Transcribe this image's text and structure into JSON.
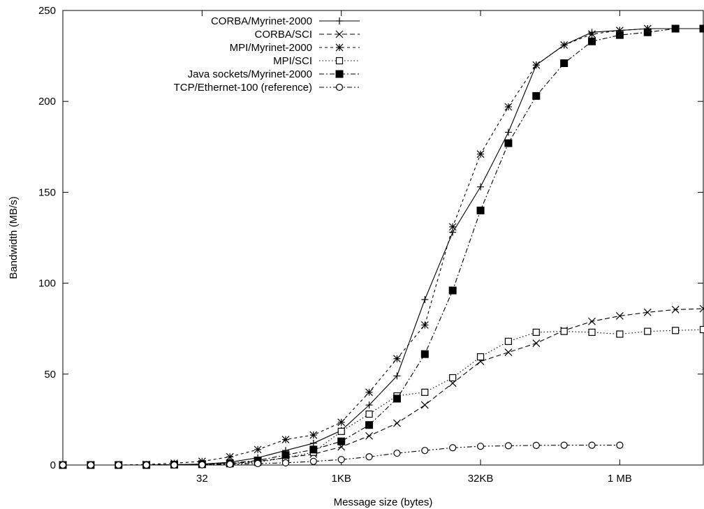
{
  "chart_data": {
    "type": "line",
    "xlabel": "Message size (bytes)",
    "ylabel": "Bandwidth (MB/s)",
    "x_scale": "log2",
    "xlim": [
      1,
      8388608
    ],
    "ylim": [
      0,
      250
    ],
    "legend_position": "top-left",
    "grid": false,
    "x_ticks": [
      {
        "label": "32",
        "value": 32
      },
      {
        "label": "1KB",
        "value": 1024
      },
      {
        "label": "32KB",
        "value": 32768
      },
      {
        "label": "1 MB",
        "value": 1048576
      }
    ],
    "y_ticks": [
      0,
      50,
      100,
      150,
      200,
      250
    ],
    "x": [
      1,
      2,
      4,
      8,
      16,
      32,
      64,
      128,
      256,
      512,
      1024,
      2048,
      4096,
      8192,
      16384,
      32768,
      65536,
      131072,
      262144,
      524288,
      1048576,
      2097152,
      4194304,
      8388608
    ],
    "series": [
      {
        "name": "CORBA/Myrinet-2000",
        "color": "#000000",
        "dash": "solid",
        "marker": "plus",
        "values": [
          0,
          0,
          0,
          0,
          0.2,
          0.5,
          1.5,
          4,
          8,
          12,
          19,
          33,
          49,
          91,
          128,
          153,
          183,
          220,
          231,
          238,
          239,
          240,
          240,
          240
        ]
      },
      {
        "name": "CORBA/SCI",
        "color": "#000000",
        "dash": "dashed",
        "marker": "cross",
        "values": [
          0,
          0,
          0,
          0,
          0.1,
          0.4,
          0.8,
          2,
          4,
          6,
          10,
          16,
          23,
          33,
          45,
          57,
          62,
          67,
          74,
          79,
          82,
          84,
          85.5,
          86
        ]
      },
      {
        "name": "MPI/Myrinet-2000",
        "color": "#000000",
        "dash": "short-dashed",
        "marker": "star",
        "values": [
          0,
          0,
          0,
          0.3,
          1,
          2,
          4.5,
          8.5,
          14,
          16.5,
          23.5,
          40,
          58.5,
          77,
          131,
          171,
          197,
          220,
          231,
          237,
          239,
          240,
          240,
          240
        ]
      },
      {
        "name": "MPI/SCI",
        "color": "#000000",
        "dash": "dotted",
        "marker": "square-open",
        "values": [
          0,
          0,
          0,
          0,
          0.1,
          0.3,
          0.7,
          1.5,
          4,
          7,
          18.5,
          28,
          38,
          40,
          48,
          59.5,
          68,
          73,
          73.5,
          73,
          72,
          73.5,
          74,
          74.5
        ]
      },
      {
        "name": "Java sockets/Myrinet-2000",
        "color": "#000000",
        "dash": "dash-dot",
        "marker": "square-filled",
        "values": [
          0,
          0,
          0,
          0,
          0.2,
          0.5,
          1,
          2.5,
          5.5,
          8.5,
          13,
          22,
          36.5,
          61,
          96,
          140,
          177,
          203,
          221,
          233,
          236.5,
          238,
          240,
          240
        ]
      },
      {
        "name": "TCP/Ethernet-100 (reference)",
        "color": "#000000",
        "dash": "dash-dot-dot",
        "marker": "circle-open",
        "values": [
          0,
          0,
          0,
          0,
          0,
          0.1,
          0.4,
          0.8,
          1.2,
          2,
          3,
          4.5,
          6.5,
          8,
          9.5,
          10.3,
          10.6,
          10.8,
          10.9,
          10.9,
          10.9,
          null,
          null,
          null
        ]
      }
    ]
  }
}
